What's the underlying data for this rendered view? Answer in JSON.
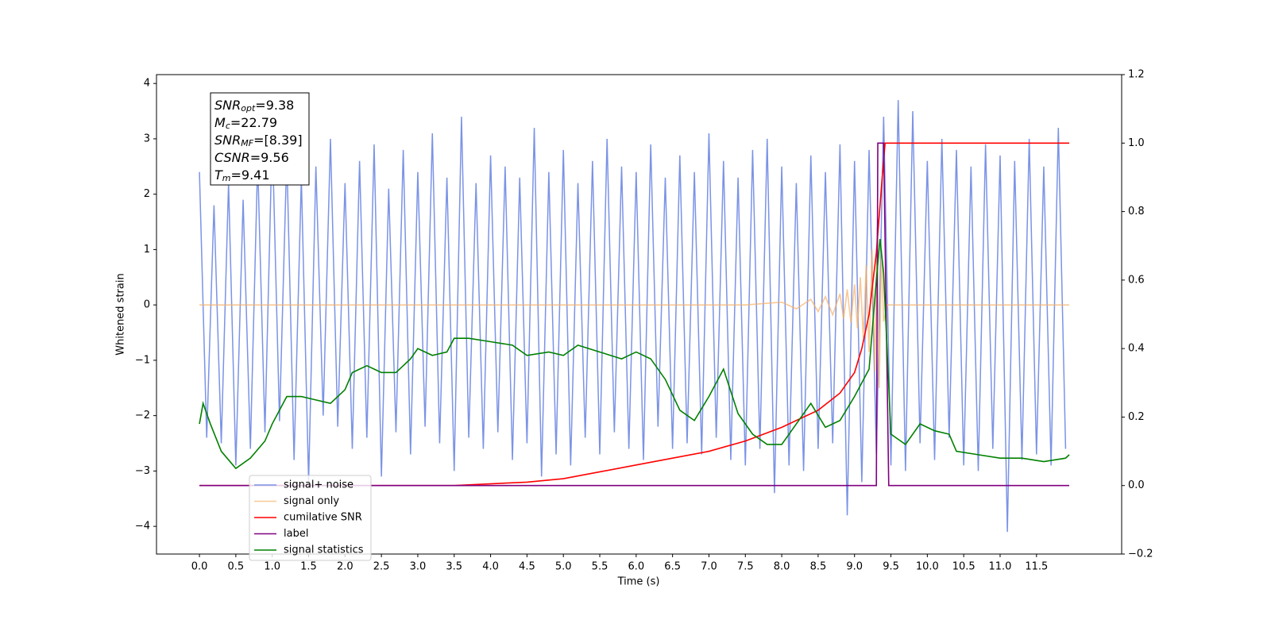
{
  "chart_data": {
    "type": "line",
    "xlabel": "Time (s)",
    "ylabel": "Whitened strain",
    "xlim": [
      -0.59,
      12.67
    ],
    "ylim": [
      -4.5,
      4.16
    ],
    "y2lim": [
      -0.2,
      1.2
    ],
    "xticks": [
      {
        "value": 0,
        "label": "0.0"
      },
      0.5,
      {
        "value": 1,
        "label": "1.0"
      },
      1.5,
      {
        "value": 2,
        "label": "2.0"
      },
      2.5,
      {
        "value": 3,
        "label": "3.0"
      },
      3.5,
      {
        "value": 4,
        "label": "4.0"
      },
      4.5,
      {
        "value": 5,
        "label": "5.0"
      },
      5.5,
      {
        "value": 6,
        "label": "6.0"
      },
      6.5,
      {
        "value": 7,
        "label": "7.0"
      },
      7.5,
      {
        "value": 8,
        "label": "8.0"
      },
      8.5,
      {
        "value": 9,
        "label": "9.0"
      },
      9.5,
      {
        "value": 10,
        "label": "10.0"
      },
      10.5,
      {
        "value": 11,
        "label": "11.0"
      },
      11.5
    ],
    "yticks": [
      {
        "value": -4,
        "label": "−4"
      },
      {
        "value": -3,
        "label": "−3"
      },
      {
        "value": -2,
        "label": "−2"
      },
      {
        "value": -1,
        "label": "−1"
      },
      0,
      1,
      2,
      3,
      4
    ],
    "y2ticks": [
      {
        "value": -0.2,
        "label": "−0.2"
      },
      {
        "value": 0,
        "label": "0.0"
      },
      0.2,
      0.4,
      0.6,
      0.8,
      {
        "value": 1,
        "label": "1.0"
      },
      1.2
    ],
    "legend": "lower left",
    "annotations": [
      {
        "main": "SNR",
        "sub": "opt",
        "rest": "=9.38"
      },
      {
        "main": "M",
        "sub": "c",
        "rest": "=22.79"
      },
      {
        "main": "SNR",
        "sub": "MF",
        "rest": "=[8.39]"
      },
      {
        "main": "CSNR",
        "rest": "=9.56"
      },
      {
        "main": "T",
        "sub": "m",
        "rest": "=9.41"
      }
    ],
    "series": [
      {
        "name": "signal+ noise",
        "color": "#7b93e6",
        "x": [
          0.0,
          0.1,
          0.2,
          0.3,
          0.4,
          0.5,
          0.6,
          0.7,
          0.8,
          0.9,
          1.0,
          1.1,
          1.2,
          1.3,
          1.4,
          1.5,
          1.6,
          1.7,
          1.8,
          1.9,
          2.0,
          2.1,
          2.2,
          2.3,
          2.4,
          2.5,
          2.6,
          2.7,
          2.8,
          2.9,
          3.0,
          3.1,
          3.2,
          3.3,
          3.4,
          3.5,
          3.6,
          3.7,
          3.8,
          3.9,
          4.0,
          4.1,
          4.2,
          4.3,
          4.4,
          4.5,
          4.6,
          4.7,
          4.8,
          4.9,
          5.0,
          5.1,
          5.2,
          5.3,
          5.4,
          5.5,
          5.6,
          5.7,
          5.8,
          5.9,
          6.0,
          6.1,
          6.2,
          6.3,
          6.4,
          6.5,
          6.6,
          6.7,
          6.8,
          6.9,
          7.0,
          7.1,
          7.2,
          7.3,
          7.4,
          7.5,
          7.6,
          7.7,
          7.8,
          7.9,
          8.0,
          8.1,
          8.2,
          8.3,
          8.4,
          8.5,
          8.6,
          8.7,
          8.8,
          8.9,
          9.0,
          9.1,
          9.2,
          9.3,
          9.4,
          9.5,
          9.6,
          9.7,
          9.8,
          9.9,
          10.0,
          10.1,
          10.2,
          10.3,
          10.4,
          10.5,
          10.6,
          10.7,
          10.8,
          10.9,
          11.0,
          11.1,
          11.2,
          11.3,
          11.4,
          11.5,
          11.6,
          11.7,
          11.8,
          11.9
        ],
        "values": [
          2.4,
          -2.4,
          1.8,
          -2.5,
          2.2,
          -2.9,
          1.9,
          -2.6,
          2.6,
          -2.3,
          3.1,
          -2.1,
          2.7,
          -2.8,
          2.3,
          -3.2,
          2.5,
          -2.0,
          3.0,
          -2.2,
          2.2,
          -2.6,
          2.6,
          -2.4,
          2.9,
          -3.1,
          2.1,
          -2.3,
          2.8,
          -2.7,
          2.4,
          -2.2,
          3.1,
          -2.5,
          2.3,
          -3.0,
          3.4,
          -2.4,
          2.2,
          -2.6,
          2.7,
          -2.3,
          2.5,
          -2.8,
          2.3,
          -2.5,
          3.2,
          -3.1,
          2.4,
          -2.7,
          2.8,
          -2.9,
          2.2,
          -2.4,
          2.6,
          -2.7,
          3.0,
          -2.3,
          2.5,
          -2.6,
          2.4,
          -2.8,
          2.9,
          -2.2,
          2.3,
          -2.6,
          2.7,
          -2.5,
          2.4,
          -2.7,
          3.1,
          -2.4,
          2.6,
          -2.8,
          2.3,
          -2.9,
          2.8,
          -2.6,
          3.0,
          -3.4,
          2.5,
          -2.9,
          2.2,
          -3.0,
          2.7,
          -2.6,
          2.4,
          -2.5,
          2.9,
          -3.8,
          2.6,
          -3.2,
          2.8,
          -2.7,
          3.4,
          -2.9,
          3.7,
          -3.0,
          3.5,
          -2.5,
          2.6,
          -2.8,
          3.0,
          -2.4,
          2.8,
          -2.9,
          2.5,
          -3.0,
          2.9,
          -2.6,
          2.7,
          -4.1,
          2.6,
          -2.8,
          3.0,
          -2.7,
          2.5,
          -2.9,
          3.2,
          -2.6
        ]
      },
      {
        "name": "signal only",
        "color": "#f5b06a",
        "x": [
          0,
          7.5,
          8.0,
          8.2,
          8.4,
          8.5,
          8.6,
          8.7,
          8.8,
          8.85,
          8.9,
          8.95,
          9.0,
          9.04,
          9.08,
          9.12,
          9.16,
          9.2,
          9.24,
          9.28,
          9.31,
          9.34,
          9.37,
          9.4,
          9.45,
          11.95
        ],
        "values": [
          0,
          0,
          0.05,
          -0.07,
          0.1,
          -0.12,
          0.15,
          -0.18,
          0.2,
          -0.25,
          0.28,
          -0.32,
          0.37,
          -0.42,
          0.5,
          -0.6,
          0.72,
          -0.85,
          1.0,
          -1.2,
          1.4,
          -1.5,
          1.0,
          -0.3,
          0,
          0
        ]
      },
      {
        "name": "cumilative SNR",
        "color": "#ff0000",
        "axis": "y2",
        "x": [
          0,
          3.5,
          4.5,
          5.0,
          5.5,
          6.0,
          6.5,
          7.0,
          7.5,
          8.0,
          8.5,
          8.8,
          9.0,
          9.1,
          9.2,
          9.3,
          9.38,
          9.42,
          11.95
        ],
        "values": [
          0,
          0,
          0.01,
          0.02,
          0.04,
          0.06,
          0.08,
          0.1,
          0.13,
          0.17,
          0.22,
          0.27,
          0.33,
          0.4,
          0.5,
          0.68,
          0.9,
          1.0,
          1.0
        ]
      },
      {
        "name": "label",
        "color": "#800080",
        "axis": "y2",
        "x": [
          0,
          9.3,
          9.32,
          9.4,
          9.47,
          11.95
        ],
        "values": [
          0,
          0,
          1,
          1,
          0,
          0
        ]
      },
      {
        "name": "signal statistics",
        "color": "#008000",
        "axis": "y2",
        "x": [
          0,
          0.05,
          0.15,
          0.3,
          0.5,
          0.7,
          0.9,
          1.0,
          1.2,
          1.4,
          1.6,
          1.8,
          2.0,
          2.1,
          2.3,
          2.4,
          2.5,
          2.7,
          2.9,
          3.0,
          3.2,
          3.4,
          3.5,
          3.7,
          4.0,
          4.3,
          4.5,
          4.8,
          5.0,
          5.2,
          5.5,
          5.8,
          6.0,
          6.2,
          6.4,
          6.6,
          6.8,
          7.0,
          7.2,
          7.4,
          7.6,
          7.8,
          8.0,
          8.2,
          8.4,
          8.6,
          8.8,
          9.0,
          9.2,
          9.3,
          9.35,
          9.4,
          9.5,
          9.7,
          9.9,
          10.1,
          10.3,
          10.4,
          10.7,
          11.0,
          11.3,
          11.6,
          11.9,
          11.95
        ],
        "values": [
          0.18,
          0.24,
          0.18,
          0.1,
          0.05,
          0.08,
          0.13,
          0.18,
          0.26,
          0.26,
          0.25,
          0.24,
          0.28,
          0.33,
          0.35,
          0.34,
          0.33,
          0.33,
          0.37,
          0.4,
          0.38,
          0.39,
          0.43,
          0.43,
          0.42,
          0.41,
          0.38,
          0.39,
          0.38,
          0.41,
          0.39,
          0.37,
          0.39,
          0.37,
          0.31,
          0.22,
          0.19,
          0.26,
          0.34,
          0.21,
          0.15,
          0.12,
          0.12,
          0.18,
          0.24,
          0.17,
          0.19,
          0.26,
          0.34,
          0.6,
          0.72,
          0.62,
          0.15,
          0.12,
          0.18,
          0.16,
          0.15,
          0.1,
          0.09,
          0.08,
          0.08,
          0.07,
          0.08,
          0.09
        ]
      }
    ]
  }
}
